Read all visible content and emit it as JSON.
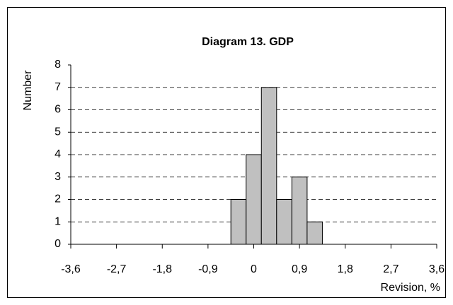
{
  "chart_data": {
    "type": "histogram",
    "title": "Diagram 13.  GDP",
    "x_label": "Revision, %",
    "y_label": "Number",
    "bins": [
      -0.45,
      -0.15,
      0.15,
      0.45,
      0.75,
      1.05,
      1.35
    ],
    "values": [
      2,
      4,
      7,
      2,
      3,
      1
    ],
    "color": "#c0c0c0",
    "xlim": [
      -3.6,
      3.6
    ],
    "xticks": [
      {
        "value": -3.6,
        "label": "-3,6"
      },
      {
        "value": -2.7,
        "label": "-2,7"
      },
      {
        "value": -1.8,
        "label": "-1,8"
      },
      {
        "value": -0.9,
        "label": "-0,9"
      },
      0,
      {
        "value": 0.9,
        "label": "0,9"
      },
      {
        "value": 1.8,
        "label": "1,8"
      },
      {
        "value": 2.7,
        "label": "2,7"
      },
      {
        "value": 3.6,
        "label": "3,6"
      }
    ],
    "ylim": [
      0,
      8
    ],
    "yticks": [
      0,
      1,
      2,
      3,
      4,
      5,
      6,
      7,
      8
    ],
    "grid": true
  }
}
